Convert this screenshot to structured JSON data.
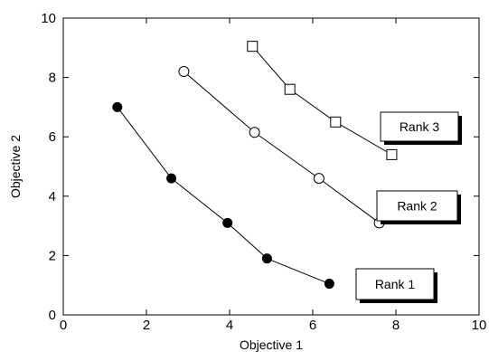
{
  "chart_data": {
    "type": "line",
    "xlabel": "Objective 1",
    "ylabel": "Objective 2",
    "xlim": [
      0,
      10
    ],
    "ylim": [
      0,
      10
    ],
    "xticks": [
      0,
      2,
      4,
      6,
      8,
      10
    ],
    "yticks": [
      0,
      2,
      4,
      6,
      8,
      10
    ],
    "grid": false,
    "series": [
      {
        "name": "Rank 1",
        "marker": "filled-circle",
        "color": "#000000",
        "x": [
          1.3,
          2.6,
          3.95,
          4.9,
          6.4
        ],
        "y": [
          7.0,
          4.6,
          3.1,
          1.9,
          1.05
        ]
      },
      {
        "name": "Rank 2",
        "marker": "open-circle",
        "color": "#000000",
        "x": [
          2.9,
          4.6,
          6.15,
          7.6
        ],
        "y": [
          8.2,
          6.15,
          4.6,
          3.1
        ]
      },
      {
        "name": "Rank 3",
        "marker": "open-square",
        "color": "#000000",
        "x": [
          4.55,
          5.45,
          6.55,
          7.9
        ],
        "y": [
          9.05,
          7.6,
          6.5,
          5.4
        ]
      }
    ]
  }
}
